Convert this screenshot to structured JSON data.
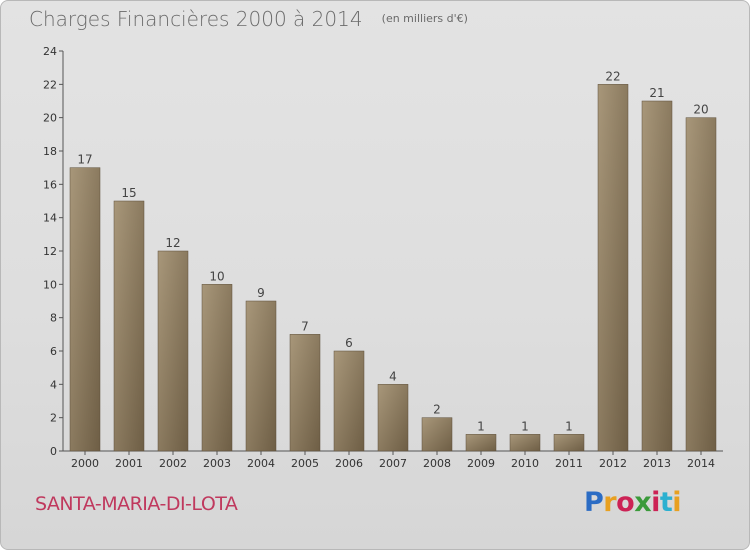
{
  "chart_data": {
    "type": "bar",
    "title": "Charges Financières 2000 à 2014",
    "subtitle": "(en milliers d'€)",
    "categories": [
      "2000",
      "2001",
      "2002",
      "2003",
      "2004",
      "2005",
      "2006",
      "2007",
      "2008",
      "2009",
      "2010",
      "2011",
      "2012",
      "2013",
      "2014"
    ],
    "values": [
      17,
      15,
      12,
      10,
      9,
      7,
      6,
      4,
      2,
      1,
      1,
      1,
      22,
      21,
      20
    ],
    "ylim": [
      0,
      24
    ],
    "yticks": [
      0,
      2,
      4,
      6,
      8,
      10,
      12,
      14,
      16,
      18,
      20,
      22,
      24
    ],
    "xlabel": "",
    "ylabel": "",
    "grid": false,
    "bar_color": "#8a7a62"
  },
  "commune_name": "SANTA-MARIA-DI-LOTA",
  "logo": {
    "text": "Proxiti",
    "colors": [
      "#2b6cc4",
      "#e8a020",
      "#cc2255",
      "#3a9a3a",
      "#cc2255",
      "#2bb0d0",
      "#e8a020"
    ]
  }
}
